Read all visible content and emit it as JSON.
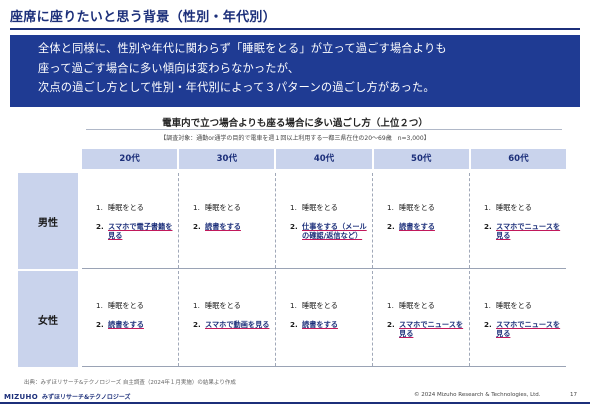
{
  "slide": {
    "title": "座席に座りたいと思う背景（性別・年代別）",
    "banner_lines": [
      "全体と同様に、性別や年代に関わらず「睡眠をとる」が立って過ごす場合よりも",
      "座って過ごす場合に多い傾向は変わらなかったが、",
      "次点の過ごし方として性別・年代別によって３パターンの過ごし方があった。"
    ],
    "subtitle": "電車内で立つ場合よりも座る場合に多い過ごし方（上位２つ）",
    "note": "【調査対象：通勤or通学の目的で電車を週１回以上利用する一都三県在住の20～69歳　n=3,000】",
    "source": "出典：みずほリサーチ&テクノロジーズ 自主調査（2024年１月実施）の結果より作成",
    "logo_brand": "MIZUHO",
    "logo_jp": "みずほリサーチ&テクノロジーズ",
    "copyright": "© 2024 Mizuho Research & Technologies, Ltd.",
    "page_number": "17"
  },
  "table": {
    "headers": [
      "20代",
      "30代",
      "40代",
      "50代",
      "60代"
    ],
    "rows": [
      {
        "label": "男性",
        "cells": [
          {
            "n1": "1.",
            "item1": "睡眠をとる",
            "n2": "2.",
            "item2": "スマホで電子書籍を見る"
          },
          {
            "n1": "1.",
            "item1": "睡眠をとる",
            "n2": "2.",
            "item2": "読書をする"
          },
          {
            "n1": "1.",
            "item1": "睡眠をとる",
            "n2": "2.",
            "item2": "仕事をする（メールの確認/返信など）"
          },
          {
            "n1": "1.",
            "item1": "睡眠をとる",
            "n2": "2.",
            "item2": "読書をする"
          },
          {
            "n1": "1.",
            "item1": "睡眠をとる",
            "n2": "2.",
            "item2": "スマホでニュースを見る"
          }
        ]
      },
      {
        "label": "女性",
        "cells": [
          {
            "n1": "1.",
            "item1": "睡眠をとる",
            "n2": "2.",
            "item2": "読書をする"
          },
          {
            "n1": "1.",
            "item1": "睡眠をとる",
            "n2": "2.",
            "item2": "スマホで動画を見る"
          },
          {
            "n1": "1.",
            "item1": "睡眠をとる",
            "n2": "2.",
            "item2": "読書をする"
          },
          {
            "n1": "1.",
            "item1": "睡眠をとる",
            "n2": "2.",
            "item2": "スマホでニュースを見る"
          },
          {
            "n1": "1.",
            "item1": "睡眠をとる",
            "n2": "2.",
            "item2": "スマホでニュースを見る"
          }
        ]
      }
    ]
  }
}
